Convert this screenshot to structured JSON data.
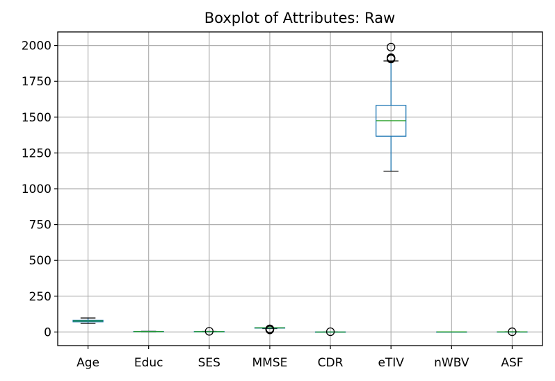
{
  "chart_data": {
    "type": "boxplot",
    "title": "Boxplot of Attributes: Raw",
    "xlabel": "",
    "ylabel": "",
    "ylim": [
      -95,
      2095
    ],
    "yticks": [
      0,
      250,
      500,
      750,
      1000,
      1250,
      1500,
      1750,
      2000
    ],
    "grid": true,
    "colors": {
      "box": "#1f77b4",
      "median": "#2ca02c",
      "whisker": "#000000",
      "grid": "#b0b0b0"
    },
    "categories": [
      "Age",
      "Educ",
      "SES",
      "MMSE",
      "CDR",
      "eTIV",
      "nWBV",
      "ASF"
    ],
    "boxes": [
      {
        "label": "Age",
        "whislo": 60,
        "q1": 71,
        "med": 77,
        "q3": 82,
        "whishi": 98,
        "fliers": []
      },
      {
        "label": "Educ",
        "whislo": 1,
        "q1": 2,
        "med": 3,
        "q3": 4,
        "whishi": 5,
        "fliers": []
      },
      {
        "label": "SES",
        "whislo": 1,
        "q1": 2,
        "med": 2,
        "q3": 3,
        "whishi": 4,
        "fliers": [
          5
        ]
      },
      {
        "label": "MMSE",
        "whislo": 24,
        "q1": 27,
        "med": 29,
        "q3": 30,
        "whishi": 30,
        "fliers": [
          15,
          16,
          17,
          18,
          19,
          20,
          21,
          22
        ]
      },
      {
        "label": "CDR",
        "whislo": 0,
        "q1": 0,
        "med": 0,
        "q3": 0.5,
        "whishi": 1,
        "fliers": [
          2
        ]
      },
      {
        "label": "eTIV",
        "whislo": 1123,
        "q1": 1367,
        "med": 1475,
        "q3": 1582,
        "whishi": 1892,
        "fliers": [
          1906,
          1911,
          1915,
          1989
        ]
      },
      {
        "label": "nWBV",
        "whislo": 0.64,
        "q1": 0.7,
        "med": 0.73,
        "q3": 0.76,
        "whishi": 0.84,
        "fliers": []
      },
      {
        "label": "ASF",
        "whislo": 0.93,
        "q1": 1.1,
        "med": 1.19,
        "q3": 1.29,
        "whishi": 1.56,
        "fliers": [
          1.59
        ]
      }
    ]
  }
}
